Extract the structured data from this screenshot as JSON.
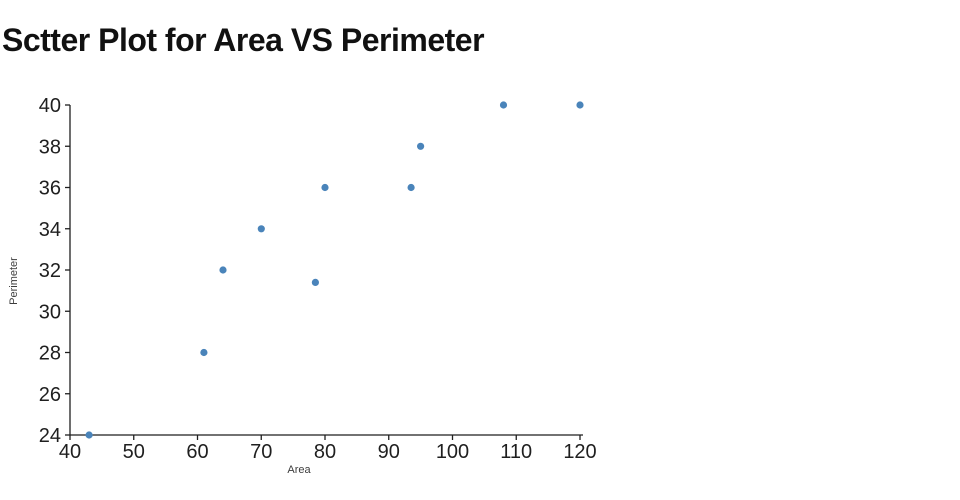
{
  "title": "Sctter Plot for Area VS Perimeter",
  "chart_data": {
    "type": "scatter",
    "title": "Sctter Plot for Area VS Perimeter",
    "xlabel": "Area",
    "ylabel": "Perimeter",
    "x": [
      43,
      61,
      64,
      70,
      78.5,
      80,
      93.5,
      95,
      108,
      120
    ],
    "y": [
      24,
      28,
      32,
      34,
      31.4,
      36,
      36,
      38,
      40,
      40
    ],
    "xlim": [
      40,
      120
    ],
    "ylim": [
      24,
      40
    ],
    "xticks": [
      40,
      50,
      60,
      70,
      80,
      90,
      100,
      110,
      120
    ],
    "yticks": [
      24,
      26,
      28,
      30,
      32,
      34,
      36,
      38,
      40
    ],
    "grid": false,
    "legend": "none",
    "marker_color": "#4a84ba",
    "axis_color": "#1f1f1f",
    "tick_label_color": "#1f1f1f",
    "axis_label_color": "#3d3d3d"
  }
}
